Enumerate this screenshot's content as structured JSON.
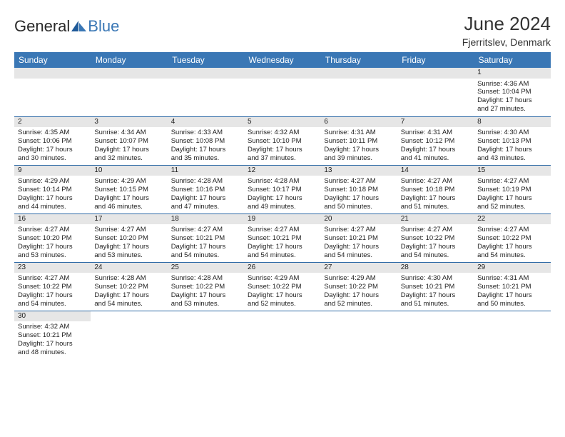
{
  "brand": {
    "part1": "General",
    "part2": "Blue"
  },
  "title": "June 2024",
  "location": "Fjerritslev, Denmark",
  "headers": {
    "sun": "Sunday",
    "mon": "Monday",
    "tue": "Tuesday",
    "wed": "Wednesday",
    "thu": "Thursday",
    "fri": "Friday",
    "sat": "Saturday"
  },
  "colors": {
    "header_bg": "#3a77b5",
    "header_text": "#ffffff",
    "daynum_bg": "#e6e6e6",
    "row_border": "#2e6aa6",
    "logo_blue": "#3a77b5"
  },
  "days": {
    "d1": {
      "n": "1",
      "sr": "Sunrise: 4:36 AM",
      "ss": "Sunset: 10:04 PM",
      "dl1": "Daylight: 17 hours",
      "dl2": "and 27 minutes."
    },
    "d2": {
      "n": "2",
      "sr": "Sunrise: 4:35 AM",
      "ss": "Sunset: 10:06 PM",
      "dl1": "Daylight: 17 hours",
      "dl2": "and 30 minutes."
    },
    "d3": {
      "n": "3",
      "sr": "Sunrise: 4:34 AM",
      "ss": "Sunset: 10:07 PM",
      "dl1": "Daylight: 17 hours",
      "dl2": "and 32 minutes."
    },
    "d4": {
      "n": "4",
      "sr": "Sunrise: 4:33 AM",
      "ss": "Sunset: 10:08 PM",
      "dl1": "Daylight: 17 hours",
      "dl2": "and 35 minutes."
    },
    "d5": {
      "n": "5",
      "sr": "Sunrise: 4:32 AM",
      "ss": "Sunset: 10:10 PM",
      "dl1": "Daylight: 17 hours",
      "dl2": "and 37 minutes."
    },
    "d6": {
      "n": "6",
      "sr": "Sunrise: 4:31 AM",
      "ss": "Sunset: 10:11 PM",
      "dl1": "Daylight: 17 hours",
      "dl2": "and 39 minutes."
    },
    "d7": {
      "n": "7",
      "sr": "Sunrise: 4:31 AM",
      "ss": "Sunset: 10:12 PM",
      "dl1": "Daylight: 17 hours",
      "dl2": "and 41 minutes."
    },
    "d8": {
      "n": "8",
      "sr": "Sunrise: 4:30 AM",
      "ss": "Sunset: 10:13 PM",
      "dl1": "Daylight: 17 hours",
      "dl2": "and 43 minutes."
    },
    "d9": {
      "n": "9",
      "sr": "Sunrise: 4:29 AM",
      "ss": "Sunset: 10:14 PM",
      "dl1": "Daylight: 17 hours",
      "dl2": "and 44 minutes."
    },
    "d10": {
      "n": "10",
      "sr": "Sunrise: 4:29 AM",
      "ss": "Sunset: 10:15 PM",
      "dl1": "Daylight: 17 hours",
      "dl2": "and 46 minutes."
    },
    "d11": {
      "n": "11",
      "sr": "Sunrise: 4:28 AM",
      "ss": "Sunset: 10:16 PM",
      "dl1": "Daylight: 17 hours",
      "dl2": "and 47 minutes."
    },
    "d12": {
      "n": "12",
      "sr": "Sunrise: 4:28 AM",
      "ss": "Sunset: 10:17 PM",
      "dl1": "Daylight: 17 hours",
      "dl2": "and 49 minutes."
    },
    "d13": {
      "n": "13",
      "sr": "Sunrise: 4:27 AM",
      "ss": "Sunset: 10:18 PM",
      "dl1": "Daylight: 17 hours",
      "dl2": "and 50 minutes."
    },
    "d14": {
      "n": "14",
      "sr": "Sunrise: 4:27 AM",
      "ss": "Sunset: 10:18 PM",
      "dl1": "Daylight: 17 hours",
      "dl2": "and 51 minutes."
    },
    "d15": {
      "n": "15",
      "sr": "Sunrise: 4:27 AM",
      "ss": "Sunset: 10:19 PM",
      "dl1": "Daylight: 17 hours",
      "dl2": "and 52 minutes."
    },
    "d16": {
      "n": "16",
      "sr": "Sunrise: 4:27 AM",
      "ss": "Sunset: 10:20 PM",
      "dl1": "Daylight: 17 hours",
      "dl2": "and 53 minutes."
    },
    "d17": {
      "n": "17",
      "sr": "Sunrise: 4:27 AM",
      "ss": "Sunset: 10:20 PM",
      "dl1": "Daylight: 17 hours",
      "dl2": "and 53 minutes."
    },
    "d18": {
      "n": "18",
      "sr": "Sunrise: 4:27 AM",
      "ss": "Sunset: 10:21 PM",
      "dl1": "Daylight: 17 hours",
      "dl2": "and 54 minutes."
    },
    "d19": {
      "n": "19",
      "sr": "Sunrise: 4:27 AM",
      "ss": "Sunset: 10:21 PM",
      "dl1": "Daylight: 17 hours",
      "dl2": "and 54 minutes."
    },
    "d20": {
      "n": "20",
      "sr": "Sunrise: 4:27 AM",
      "ss": "Sunset: 10:21 PM",
      "dl1": "Daylight: 17 hours",
      "dl2": "and 54 minutes."
    },
    "d21": {
      "n": "21",
      "sr": "Sunrise: 4:27 AM",
      "ss": "Sunset: 10:22 PM",
      "dl1": "Daylight: 17 hours",
      "dl2": "and 54 minutes."
    },
    "d22": {
      "n": "22",
      "sr": "Sunrise: 4:27 AM",
      "ss": "Sunset: 10:22 PM",
      "dl1": "Daylight: 17 hours",
      "dl2": "and 54 minutes."
    },
    "d23": {
      "n": "23",
      "sr": "Sunrise: 4:27 AM",
      "ss": "Sunset: 10:22 PM",
      "dl1": "Daylight: 17 hours",
      "dl2": "and 54 minutes."
    },
    "d24": {
      "n": "24",
      "sr": "Sunrise: 4:28 AM",
      "ss": "Sunset: 10:22 PM",
      "dl1": "Daylight: 17 hours",
      "dl2": "and 54 minutes."
    },
    "d25": {
      "n": "25",
      "sr": "Sunrise: 4:28 AM",
      "ss": "Sunset: 10:22 PM",
      "dl1": "Daylight: 17 hours",
      "dl2": "and 53 minutes."
    },
    "d26": {
      "n": "26",
      "sr": "Sunrise: 4:29 AM",
      "ss": "Sunset: 10:22 PM",
      "dl1": "Daylight: 17 hours",
      "dl2": "and 52 minutes."
    },
    "d27": {
      "n": "27",
      "sr": "Sunrise: 4:29 AM",
      "ss": "Sunset: 10:22 PM",
      "dl1": "Daylight: 17 hours",
      "dl2": "and 52 minutes."
    },
    "d28": {
      "n": "28",
      "sr": "Sunrise: 4:30 AM",
      "ss": "Sunset: 10:21 PM",
      "dl1": "Daylight: 17 hours",
      "dl2": "and 51 minutes."
    },
    "d29": {
      "n": "29",
      "sr": "Sunrise: 4:31 AM",
      "ss": "Sunset: 10:21 PM",
      "dl1": "Daylight: 17 hours",
      "dl2": "and 50 minutes."
    },
    "d30": {
      "n": "30",
      "sr": "Sunrise: 4:32 AM",
      "ss": "Sunset: 10:21 PM",
      "dl1": "Daylight: 17 hours",
      "dl2": "and 48 minutes."
    }
  }
}
